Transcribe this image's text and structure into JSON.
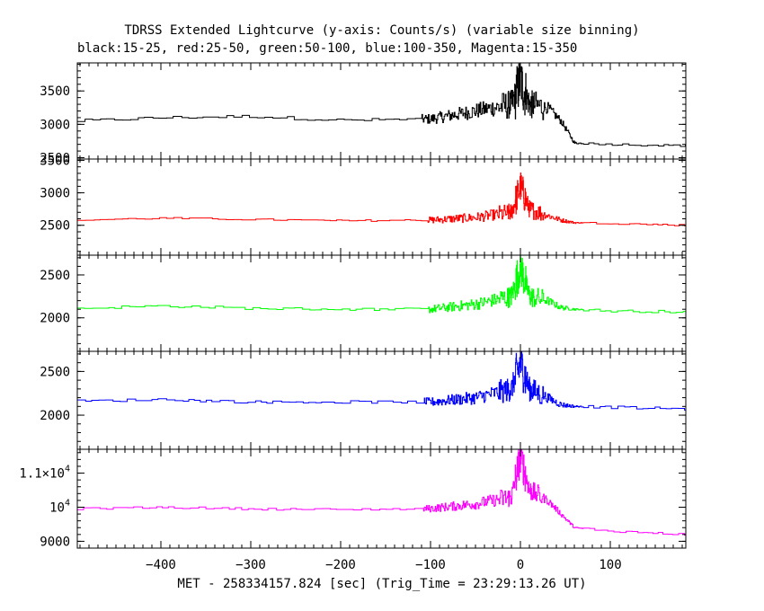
{
  "chart_data": {
    "type": "line",
    "title": "TDRSS Extended Lightcurve (y-axis: Counts/s) (variable size binning)",
    "subtitle": "black:15-25, red:25-50, green:50-100, blue:100-350, Magenta:15-350",
    "xlabel": "MET - 258334157.824 [sec] (Trig_Time = 23:29:13.26 UT)",
    "xlim": [
      -493,
      184
    ],
    "x_ticks": [
      {
        "value": -400,
        "label": "−400"
      },
      {
        "value": -300,
        "label": "−300"
      },
      {
        "value": -200,
        "label": "−200"
      },
      {
        "value": -100,
        "label": "−100"
      },
      {
        "value": 0,
        "label": "0"
      },
      {
        "value": 100,
        "label": "100"
      }
    ],
    "panels": [
      {
        "name": "black",
        "color": "#000000",
        "ylim": [
          2480,
          3920
        ],
        "y_ticks": [
          {
            "value": 2500,
            "label": "2500"
          },
          {
            "value": 3000,
            "label": "3000"
          },
          {
            "value": 3500,
            "label": "3500"
          }
        ],
        "pre_level": 3075,
        "pre_amp": 45,
        "burst_level": 3230,
        "burst_amp": 650,
        "post_level": 2700,
        "post_amp": 30,
        "x": [
          -493,
          -400,
          -300,
          -200,
          -100,
          -50,
          -10,
          0,
          10,
          30,
          45,
          60,
          100,
          184
        ],
        "y": [
          3050,
          3100,
          3120,
          3060,
          3080,
          3200,
          3300,
          3650,
          3300,
          3250,
          3050,
          2720,
          2700,
          2680
        ]
      },
      {
        "name": "red",
        "color": "#ff0000",
        "ylim": [
          2040,
          3520
        ],
        "y_ticks": [
          {
            "value": 2500,
            "label": "2500"
          },
          {
            "value": 3000,
            "label": "3000"
          },
          {
            "value": 3500,
            "label": "3500"
          }
        ],
        "pre_level": 2585,
        "pre_amp": 25,
        "burst_level": 2600,
        "burst_amp": 420,
        "post_level": 2530,
        "post_amp": 25,
        "x": [
          -493,
          -400,
          -300,
          -200,
          -100,
          -50,
          -10,
          0,
          10,
          30,
          45,
          60,
          100,
          184
        ],
        "y": [
          2580,
          2610,
          2590,
          2570,
          2580,
          2620,
          2700,
          3100,
          2750,
          2650,
          2580,
          2540,
          2530,
          2500
        ]
      },
      {
        "name": "green",
        "color": "#00ff00",
        "ylim": [
          1610,
          2730
        ],
        "y_ticks": [
          {
            "value": 2000,
            "label": "2000"
          },
          {
            "value": 2500,
            "label": "2500"
          }
        ],
        "pre_level": 2115,
        "pre_amp": 30,
        "burst_level": 2150,
        "burst_amp": 380,
        "post_level": 2090,
        "post_amp": 30,
        "x": [
          -493,
          -400,
          -300,
          -200,
          -100,
          -50,
          -10,
          0,
          10,
          30,
          45,
          60,
          100,
          184
        ],
        "y": [
          2110,
          2140,
          2110,
          2100,
          2100,
          2160,
          2250,
          2600,
          2250,
          2200,
          2120,
          2100,
          2080,
          2070
        ]
      },
      {
        "name": "blue",
        "color": "#0000ff",
        "ylim": [
          1610,
          2730
        ],
        "y_ticks": [
          {
            "value": 2000,
            "label": "2000"
          },
          {
            "value": 2500,
            "label": "2500"
          }
        ],
        "pre_level": 2160,
        "pre_amp": 30,
        "burst_level": 2150,
        "burst_amp": 420,
        "post_level": 2090,
        "post_amp": 30,
        "x": [
          -493,
          -400,
          -300,
          -200,
          -100,
          -50,
          -10,
          0,
          10,
          30,
          45,
          60,
          100,
          184
        ],
        "y": [
          2160,
          2180,
          2150,
          2150,
          2150,
          2200,
          2300,
          2600,
          2300,
          2200,
          2120,
          2100,
          2090,
          2070
        ]
      },
      {
        "name": "Magenta",
        "color": "#ff00ff",
        "ylim": [
          8800,
          11700
        ],
        "y_ticks": [
          {
            "value": 9000,
            "label": "9000",
            "exp": ""
          },
          {
            "value": 10000,
            "label": "10",
            "exp": "4"
          },
          {
            "value": 11000,
            "label": "1.1×10",
            "exp": "4"
          }
        ],
        "pre_level": 9980,
        "pre_amp": 60,
        "burst_level": 10050,
        "burst_amp": 900,
        "post_level": 9300,
        "post_amp": 60,
        "x": [
          -493,
          -400,
          -300,
          -200,
          -100,
          -50,
          -10,
          0,
          10,
          30,
          45,
          60,
          100,
          184
        ],
        "y": [
          9950,
          10000,
          9950,
          9930,
          9960,
          10100,
          10300,
          11500,
          10500,
          10200,
          9800,
          9400,
          9300,
          9200
        ]
      }
    ]
  }
}
